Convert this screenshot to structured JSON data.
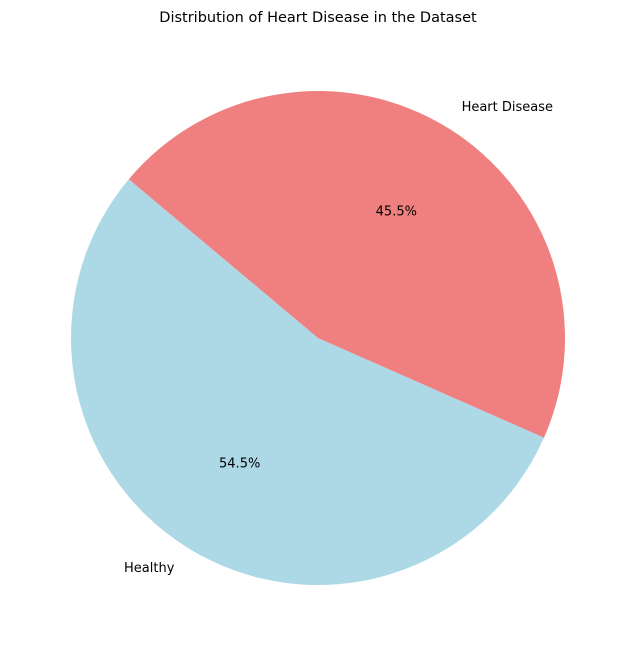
{
  "chart_data": {
    "type": "pie",
    "title": "Distribution of Heart Disease in the Dataset",
    "categories": [
      "Healthy",
      "Heart Disease"
    ],
    "values": [
      54.5,
      45.5
    ],
    "percent_labels": [
      "54.5%",
      "45.5%"
    ],
    "colors": [
      "#add8e6",
      "#f08080"
    ],
    "start_angle_deg": 140,
    "direction": "counterclockwise",
    "legend": "none"
  }
}
